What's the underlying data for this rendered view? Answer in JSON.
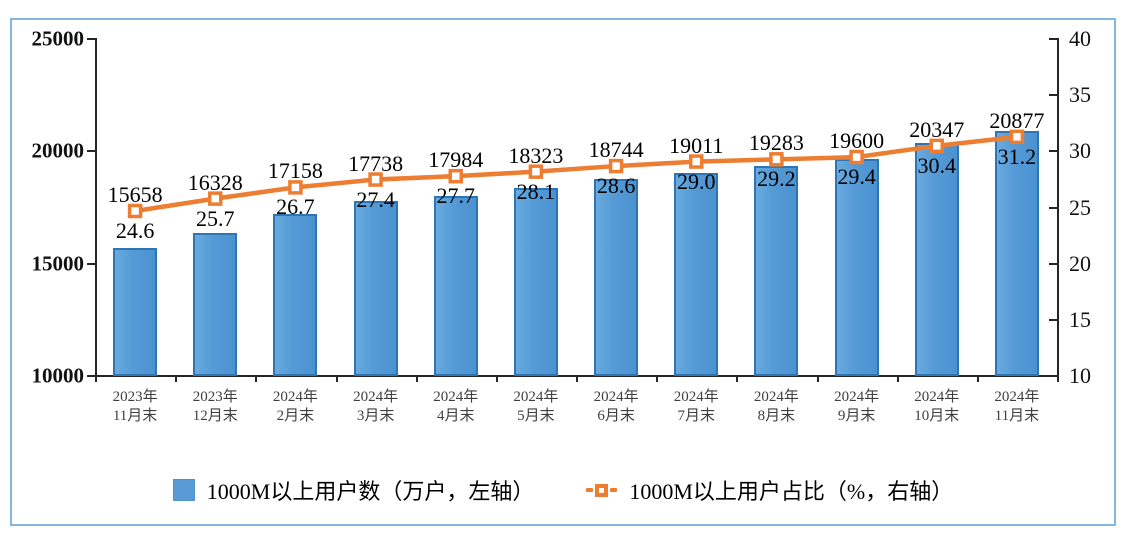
{
  "chart_data": {
    "type": "bar",
    "title": "",
    "categories": [
      [
        "2023年",
        "11月末"
      ],
      [
        "2023年",
        "12月末"
      ],
      [
        "2024年",
        "2月末"
      ],
      [
        "2024年",
        "3月末"
      ],
      [
        "2024年",
        "4月末"
      ],
      [
        "2024年",
        "5月末"
      ],
      [
        "2024年",
        "6月末"
      ],
      [
        "2024年",
        "7月末"
      ],
      [
        "2024年",
        "8月末"
      ],
      [
        "2024年",
        "9月末"
      ],
      [
        "2024年",
        "10月末"
      ],
      [
        "2024年",
        "11月末"
      ]
    ],
    "series": [
      {
        "name": "1000M以上用户数（万户，左轴）",
        "type": "bar",
        "axis": "left",
        "values": [
          15658,
          16328,
          17158,
          17738,
          17984,
          18323,
          18744,
          19011,
          19283,
          19600,
          20347,
          20877
        ],
        "color": "#5b9bd5",
        "border_color": "#2e75b6"
      },
      {
        "name": "1000M以上用户占比（%，右轴）",
        "type": "line",
        "axis": "right",
        "values": [
          24.6,
          25.7,
          26.7,
          27.4,
          27.7,
          28.1,
          28.6,
          29.0,
          29.2,
          29.4,
          30.4,
          31.2
        ],
        "color": "#ed7d31",
        "marker": "square-white-fill"
      }
    ],
    "left_axis": {
      "min": 10000,
      "max": 25000,
      "step": 5000
    },
    "right_axis": {
      "min": 10,
      "max": 40,
      "step": 5
    },
    "grid": false,
    "legend_position": "bottom",
    "data_labels": true
  },
  "legend": {
    "items": [
      {
        "label": "1000M以上用户数（万户，左轴）"
      },
      {
        "label": "1000M以上用户占比（%，右轴）"
      }
    ]
  },
  "colors": {
    "frame_border": "#86b7e4",
    "bar_fill": "#5b9bd5",
    "bar_border": "#2e75b6",
    "line": "#ed7d31",
    "axis": "#262626",
    "category_text": "#3f3f3f"
  }
}
